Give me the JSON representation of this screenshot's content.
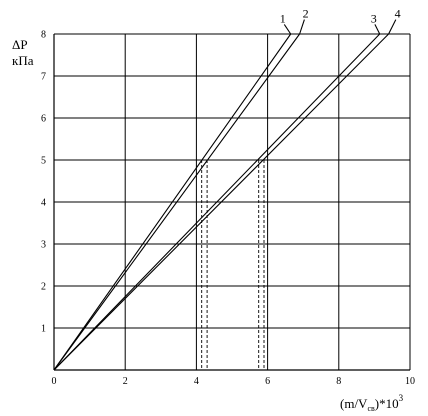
{
  "chart_data": {
    "type": "line",
    "ylabel_line1": "ΔP",
    "ylabel_line2": "кПа",
    "xlabel_main": "(m/V",
    "xlabel_sub": "св",
    "xlabel_tail": ")*10",
    "xlabel_sup": "3",
    "xlim": [
      0,
      10
    ],
    "ylim": [
      0,
      8
    ],
    "grid": true,
    "x_ticks": [
      0,
      2,
      4,
      6,
      8,
      10
    ],
    "y_ticks": [
      1,
      2,
      3,
      4,
      5,
      6,
      7,
      8
    ],
    "series": [
      {
        "name": "1",
        "x": [
          0,
          6.65
        ],
        "y": [
          0,
          8.0
        ]
      },
      {
        "name": "2",
        "x": [
          0,
          6.9
        ],
        "y": [
          0,
          8.0
        ]
      },
      {
        "name": "3",
        "x": [
          0,
          9.15
        ],
        "y": [
          0,
          8.0
        ]
      },
      {
        "name": "4",
        "x": [
          0,
          9.4
        ],
        "y": [
          0,
          8.0
        ]
      }
    ],
    "reference_lines": [
      {
        "y": 5,
        "x": [
          4.15,
          4.3,
          5.75,
          5.9
        ]
      }
    ]
  }
}
